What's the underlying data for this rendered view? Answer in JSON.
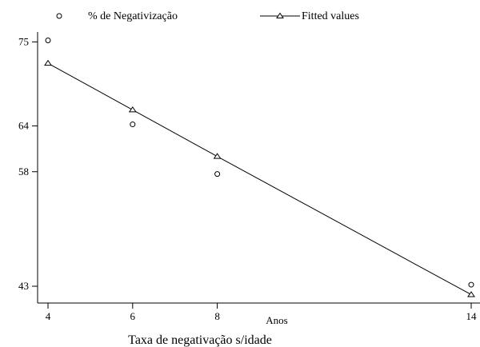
{
  "chart_data": {
    "type": "scatter",
    "title": "",
    "caption": "Taxa de negativação s/idade",
    "xlabel": "Anos",
    "ylabel": "",
    "x_ticks": [
      4,
      6,
      8,
      14
    ],
    "y_ticks": [
      75,
      64,
      58,
      43
    ],
    "xlim": [
      3.9,
      14.1
    ],
    "ylim": [
      40.8,
      76.3
    ],
    "grid": false,
    "legend_position": "top",
    "series": [
      {
        "name": "% de Negativização",
        "marker": "circle",
        "points": [
          {
            "x": 4,
            "y": 75.2
          },
          {
            "x": 6,
            "y": 64.2
          },
          {
            "x": 8,
            "y": 57.7
          },
          {
            "x": 14,
            "y": 43.2
          }
        ]
      },
      {
        "name": "Fitted values",
        "marker": "triangle",
        "line": true,
        "points": [
          {
            "x": 4,
            "y": 72.2
          },
          {
            "x": 6,
            "y": 66.1
          },
          {
            "x": 8,
            "y": 60.0
          },
          {
            "x": 14,
            "y": 41.9
          }
        ]
      }
    ]
  }
}
